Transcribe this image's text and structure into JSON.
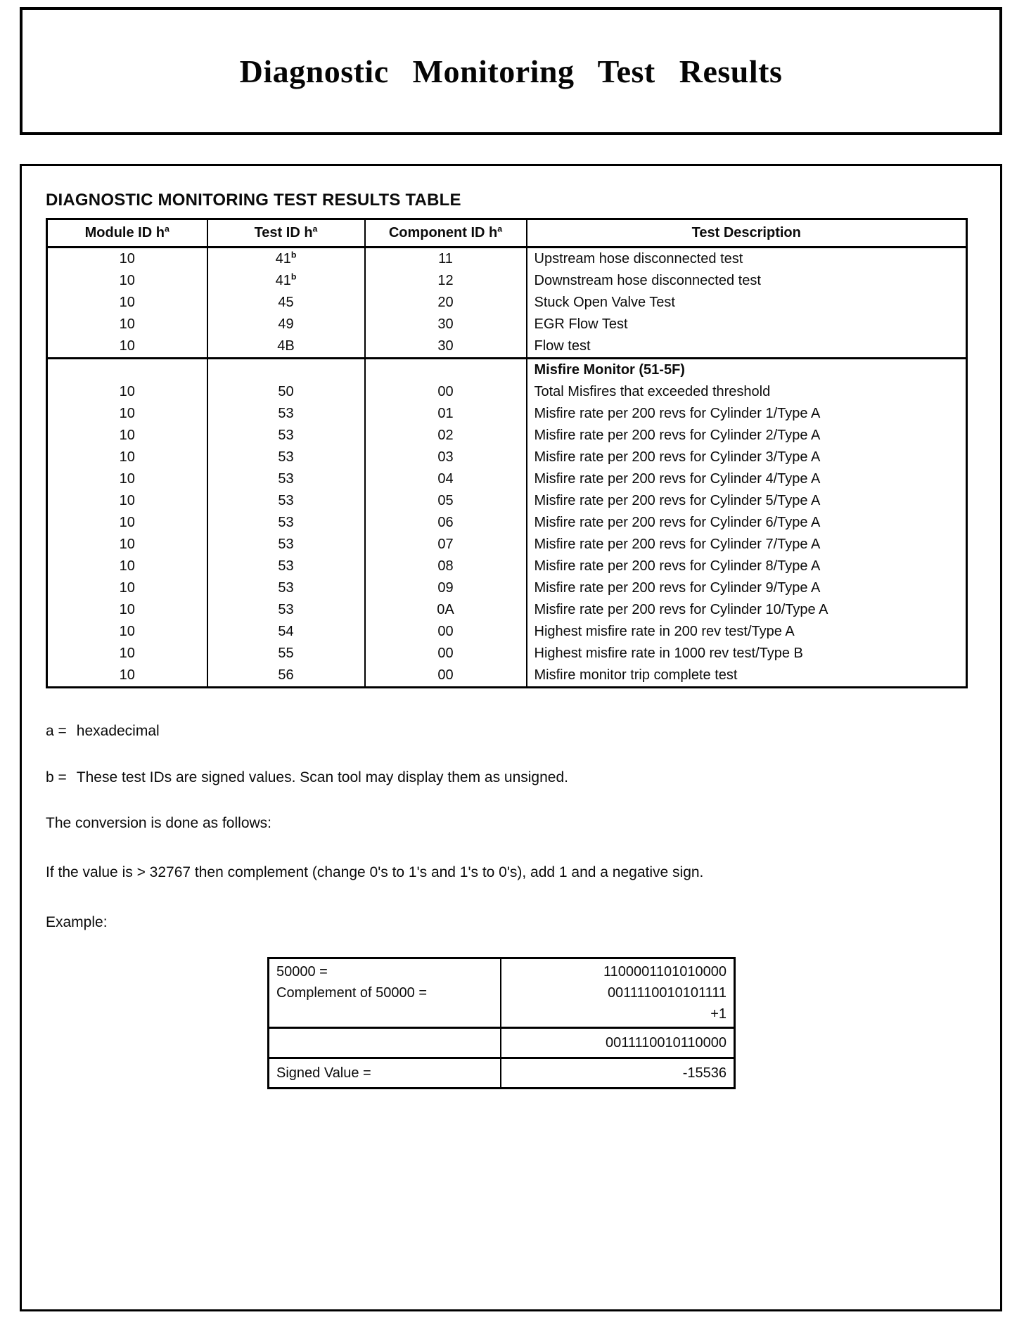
{
  "title": "Diagnostic Monitoring Test Results",
  "section_heading": "DIAGNOSTIC MONITORING TEST RESULTS TABLE",
  "results_table": {
    "headers": [
      {
        "text": "Module ID h",
        "sup": "a"
      },
      {
        "text": "Test ID h",
        "sup": "a"
      },
      {
        "text": "Component ID h",
        "sup": "a"
      },
      {
        "text": "Test Description",
        "sup": ""
      }
    ],
    "groups": [
      {
        "section_label": "",
        "rows": [
          {
            "module": "10",
            "test": "41",
            "test_sup": "b",
            "component": "11",
            "description": "Upstream hose disconnected test"
          },
          {
            "module": "10",
            "test": "41",
            "test_sup": "b",
            "component": "12",
            "description": "Downstream hose disconnected test"
          },
          {
            "module": "10",
            "test": "45",
            "test_sup": "",
            "component": "20",
            "description": "Stuck Open Valve Test"
          },
          {
            "module": "10",
            "test": "49",
            "test_sup": "",
            "component": "30",
            "description": "EGR Flow Test"
          },
          {
            "module": "10",
            "test": "4B",
            "test_sup": "",
            "component": "30",
            "description": "Flow test"
          }
        ]
      },
      {
        "section_label": "Misfire Monitor (51-5F)",
        "rows": [
          {
            "module": "10",
            "test": "50",
            "test_sup": "",
            "component": "00",
            "description": "Total Misfires that exceeded threshold"
          },
          {
            "module": "10",
            "test": "53",
            "test_sup": "",
            "component": "01",
            "description": "Misfire rate per 200 revs for Cylinder 1/Type A"
          },
          {
            "module": "10",
            "test": "53",
            "test_sup": "",
            "component": "02",
            "description": "Misfire rate per 200 revs for Cylinder 2/Type A"
          },
          {
            "module": "10",
            "test": "53",
            "test_sup": "",
            "component": "03",
            "description": "Misfire rate per 200 revs for Cylinder 3/Type A"
          },
          {
            "module": "10",
            "test": "53",
            "test_sup": "",
            "component": "04",
            "description": "Misfire rate per 200 revs for Cylinder 4/Type A"
          },
          {
            "module": "10",
            "test": "53",
            "test_sup": "",
            "component": "05",
            "description": "Misfire rate per 200 revs for Cylinder 5/Type A"
          },
          {
            "module": "10",
            "test": "53",
            "test_sup": "",
            "component": "06",
            "description": "Misfire rate per 200 revs for Cylinder 6/Type A"
          },
          {
            "module": "10",
            "test": "53",
            "test_sup": "",
            "component": "07",
            "description": "Misfire rate per 200 revs for Cylinder 7/Type A"
          },
          {
            "module": "10",
            "test": "53",
            "test_sup": "",
            "component": "08",
            "description": "Misfire rate per 200 revs for Cylinder 8/Type A"
          },
          {
            "module": "10",
            "test": "53",
            "test_sup": "",
            "component": "09",
            "description": "Misfire rate per 200 revs for Cylinder 9/Type A"
          },
          {
            "module": "10",
            "test": "53",
            "test_sup": "",
            "component": "0A",
            "description": "Misfire rate per 200 revs for Cylinder 10/Type A"
          },
          {
            "module": "10",
            "test": "54",
            "test_sup": "",
            "component": "00",
            "description": "Highest misfire rate in 200 rev test/Type A"
          },
          {
            "module": "10",
            "test": "55",
            "test_sup": "",
            "component": "00",
            "description": "Highest misfire rate in 1000 rev test/Type B"
          },
          {
            "module": "10",
            "test": "56",
            "test_sup": "",
            "component": "00",
            "description": "Misfire monitor trip complete test"
          }
        ]
      }
    ]
  },
  "footnotes": {
    "a_label": "a =",
    "a_text": "hexadecimal",
    "b_label": "b =",
    "b_text": "These test IDs are signed values. Scan tool may display them as unsigned."
  },
  "conversion": {
    "intro": "The conversion is done as follows:",
    "rule": "If the value is > 32767 then complement (change 0's to 1's and 1's to 0's), add 1 and a negative sign.",
    "example_label": "Example:"
  },
  "conversion_example": {
    "line1_label": "50000 =",
    "line1_value": "1100001101010000",
    "line2_label": "Complement of 50000 =",
    "line2_value": "0011110010101111",
    "line3_value": "+1",
    "result_binary": "0011110010110000",
    "signed_label": "Signed Value =",
    "signed_value": "-15536"
  }
}
